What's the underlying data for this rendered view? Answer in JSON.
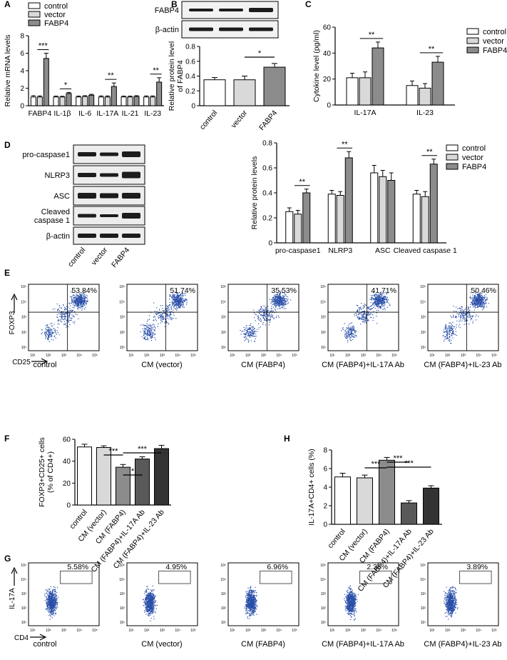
{
  "panel_letters": [
    "A",
    "B",
    "C",
    "D",
    "E",
    "F",
    "G",
    "H"
  ],
  "colors": {
    "control": "#ffffff",
    "vector": "#d9d9d9",
    "fabp4": "#8c8c8c",
    "il17ab": "#595959",
    "il23ab": "#333333",
    "dot": "#2a4fa8",
    "blot": "#1c1c1c"
  },
  "legend3": [
    "control",
    "vector",
    "FABP4"
  ],
  "blot_B": {
    "labels": [
      "FABP4",
      "β-actin"
    ]
  },
  "blot_D": {
    "labels": [
      "pro-caspase1",
      "NLRP3",
      "ASC",
      "Cleaved\ncaspase 1",
      "β-actin"
    ],
    "lanes": [
      "control",
      "vector",
      "FABP4"
    ]
  },
  "flow_E": {
    "ylabel": "FOXP3",
    "xlabel": "CD25",
    "ticks": [
      "10¹",
      "10²",
      "10³",
      "10⁴",
      "10⁵"
    ],
    "plots": [
      {
        "label": "control",
        "pct": "53.84%"
      },
      {
        "label": "CM (vector)",
        "pct": "51.74%"
      },
      {
        "label": "CM (FABP4)",
        "pct": "35.53%"
      },
      {
        "label": "CM (FABP4)+IL-17A Ab",
        "pct": "41.71%"
      },
      {
        "label": "CM (FABP4)+IL-23 Ab",
        "pct": "50.46%"
      }
    ]
  },
  "flow_G": {
    "ylabel": "IL-17A",
    "xlabel": "CD4",
    "ticks": [
      "10¹",
      "10²",
      "10³",
      "10⁴",
      "10⁵"
    ],
    "plots": [
      {
        "label": "control",
        "pct": "5.58%"
      },
      {
        "label": "CM (vector)",
        "pct": "4.95%"
      },
      {
        "label": "CM (FABP4)",
        "pct": "6.96%"
      },
      {
        "label": "CM (FABP4)+IL-17A Ab",
        "pct": "2.36%"
      },
      {
        "label": "CM (FABP4)+IL-23 Ab",
        "pct": "3.89%"
      }
    ]
  },
  "chart_data": [
    {
      "panel": "A",
      "type": "bar",
      "categories": [
        "FABP4",
        "IL-1β",
        "IL-6",
        "IL-17A",
        "IL-21",
        "IL-23"
      ],
      "series": [
        {
          "name": "control",
          "values": [
            1.0,
            1.0,
            1.0,
            1.0,
            1.0,
            1.0
          ]
        },
        {
          "name": "vector",
          "values": [
            1.0,
            1.0,
            1.05,
            1.0,
            1.0,
            1.0
          ]
        },
        {
          "name": "FABP4",
          "values": [
            5.4,
            1.4,
            1.2,
            2.2,
            1.05,
            2.7
          ]
        }
      ],
      "errors": [
        [
          0.15,
          0.1,
          0.1,
          0.12,
          0.1,
          0.12
        ],
        [
          0.12,
          0.08,
          0.1,
          0.12,
          0.1,
          0.12
        ],
        [
          0.6,
          0.12,
          0.1,
          0.4,
          0.1,
          0.5
        ]
      ],
      "ylabel": "Relative mRNA levels",
      "ylim": [
        0,
        8
      ],
      "yticks": [
        0,
        2,
        4,
        6,
        8
      ],
      "sig": [
        {
          "cat": 0,
          "text": "***"
        },
        {
          "cat": 1,
          "text": "*"
        },
        {
          "cat": 3,
          "text": "**"
        },
        {
          "cat": 5,
          "text": "**"
        }
      ],
      "legend": "top-left"
    },
    {
      "panel": "B",
      "type": "bar",
      "categories": [
        "control",
        "vector",
        "FABP4"
      ],
      "values": [
        0.35,
        0.35,
        0.52
      ],
      "errors": [
        0.03,
        0.05,
        0.05
      ],
      "ylabel": "Relative protein level\nof FABP4",
      "ylim": [
        0,
        0.8
      ],
      "yticks": [
        0.0,
        0.2,
        0.4,
        0.6,
        0.8
      ],
      "sig": [
        {
          "from": 1,
          "to": 2,
          "text": "*"
        }
      ]
    },
    {
      "panel": "C",
      "type": "bar",
      "categories": [
        "IL-17A",
        "IL-23"
      ],
      "series": [
        {
          "name": "control",
          "values": [
            21,
            15
          ]
        },
        {
          "name": "vector",
          "values": [
            21,
            13
          ]
        },
        {
          "name": "FABP4",
          "values": [
            44,
            33
          ]
        }
      ],
      "errors": [
        [
          3.5,
          3.5
        ],
        [
          4.5,
          3.5
        ],
        [
          4.5,
          4.5
        ]
      ],
      "ylabel": "Cytokine level (pg/ml)",
      "ylim": [
        0,
        60
      ],
      "yticks": [
        0,
        20,
        40,
        60
      ],
      "sig": [
        {
          "cat": 0,
          "text": "**"
        },
        {
          "cat": 1,
          "text": "**"
        }
      ],
      "legend": "right"
    },
    {
      "panel": "D",
      "type": "bar",
      "categories": [
        "pro-caspase1",
        "NLRP3",
        "ASC",
        "Cleaved caspase 1"
      ],
      "series": [
        {
          "name": "control",
          "values": [
            0.25,
            0.39,
            0.56,
            0.39
          ]
        },
        {
          "name": "vector",
          "values": [
            0.23,
            0.38,
            0.53,
            0.37
          ]
        },
        {
          "name": "FABP4",
          "values": [
            0.4,
            0.68,
            0.5,
            0.63
          ]
        }
      ],
      "errors": [
        [
          0.03,
          0.03,
          0.06,
          0.03
        ],
        [
          0.03,
          0.03,
          0.05,
          0.04
        ],
        [
          0.03,
          0.05,
          0.06,
          0.04
        ]
      ],
      "ylabel": "Relative protein levels",
      "ylim": [
        0,
        0.8
      ],
      "yticks": [
        0.0,
        0.2,
        0.4,
        0.6,
        0.8
      ],
      "sig": [
        {
          "cat": 0,
          "text": "**"
        },
        {
          "cat": 1,
          "text": "**"
        },
        {
          "cat": 3,
          "text": "**"
        }
      ],
      "legend": "right"
    },
    {
      "panel": "F",
      "type": "bar",
      "categories": [
        "control",
        "CM (vector)",
        "CM (FABP4)",
        "CM (FABP4)+IL-17A Ab",
        "CM (FABP4)+IL-23 Ab"
      ],
      "values": [
        53,
        52.5,
        34.5,
        42,
        51.5
      ],
      "errors": [
        2.5,
        1.5,
        2.5,
        2,
        3
      ],
      "ylabel": "FOXP3+CD25+ cells\n(% of CD4+)",
      "ylim": [
        0,
        60
      ],
      "yticks": [
        0,
        20,
        40,
        60
      ],
      "sig": [
        {
          "from": 1,
          "to": 2,
          "text": "***"
        },
        {
          "from": 2,
          "to": 4,
          "text": "***"
        },
        {
          "from": 2,
          "to": 3,
          "text": "*"
        }
      ]
    },
    {
      "panel": "H",
      "type": "bar",
      "categories": [
        "control",
        "CM (vector)",
        "CM (FABP4)",
        "CM (FABP4)+IL-17A Ab",
        "CM (FABP4)+IL-23 Ab"
      ],
      "values": [
        5.1,
        5.0,
        6.9,
        2.3,
        3.9
      ],
      "errors": [
        0.4,
        0.3,
        0.3,
        0.25,
        0.25
      ],
      "ylabel": "IL-17A+CD4+ cells  (%)",
      "ylim": [
        0,
        8
      ],
      "yticks": [
        0,
        2,
        4,
        6,
        8
      ],
      "sig": [
        {
          "from": 1,
          "to": 2,
          "text": "***"
        },
        {
          "from": 2,
          "to": 3,
          "text": "***"
        },
        {
          "from": 2,
          "to": 4,
          "text": "***"
        }
      ]
    }
  ]
}
